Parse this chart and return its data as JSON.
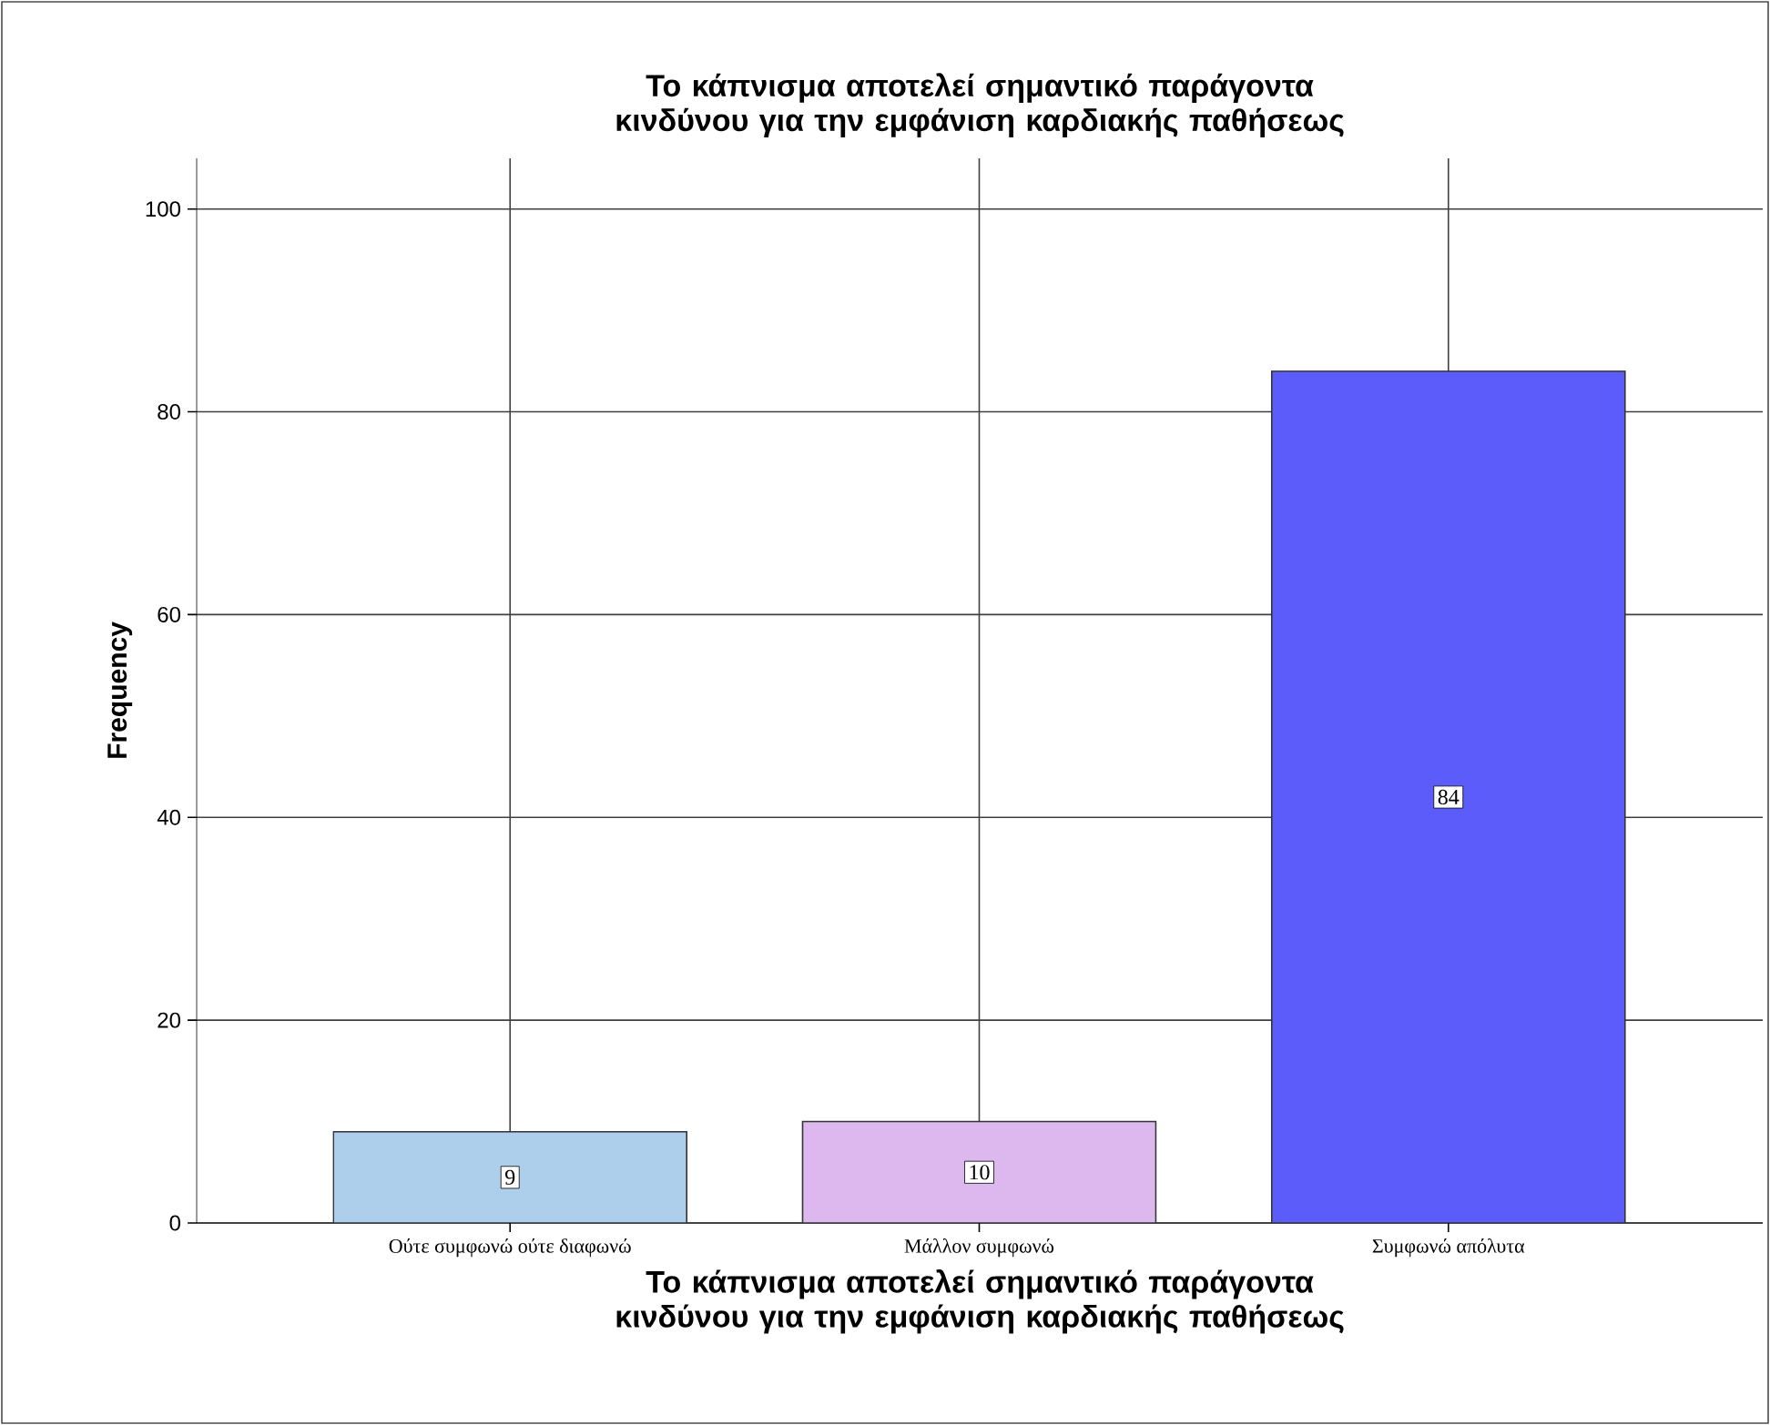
{
  "chart_data": {
    "type": "bar",
    "title": "Το κάπνισμα αποτελεί σημαντικό παράγοντα κινδύνου για την εμφάνιση καρδιακής παθήσεως",
    "xlabel": "Το κάπνισμα αποτελεί σημαντικό παράγοντα κινδύνου για την εμφάνιση καρδιακής παθήσεως",
    "ylabel": "Frequency",
    "categories": [
      "Ούτε συμφωνώ ούτε διαφωνώ",
      "Μάλλον συμφωνώ",
      "Συμφωνώ απόλυτα"
    ],
    "values": [
      9,
      10,
      84
    ],
    "colors": [
      "#aecfec",
      "#dcb8ee",
      "#5b5cf9"
    ],
    "value_labels": [
      "9",
      "10",
      "84"
    ],
    "ylim": [
      0,
      105
    ],
    "yticks": [
      0,
      20,
      40,
      60,
      80,
      100
    ],
    "grid": true
  }
}
